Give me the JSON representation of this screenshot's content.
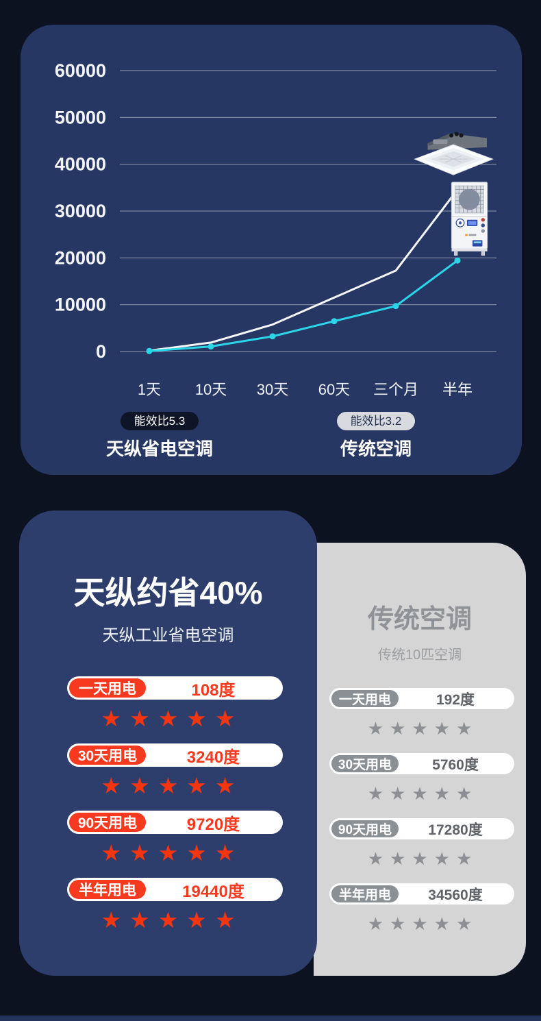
{
  "page": {
    "background": "#0c1220",
    "panel_navy": "#273763",
    "card_navy": "#2d3e6c",
    "card_gray": "#d5d5d5",
    "accent_red": "#f7391f",
    "accent_cyan": "#2bd6e9",
    "bottom_strip_color": "#24335c"
  },
  "chart_data": [
    {
      "type": "line",
      "title": "",
      "categories": [
        "1天",
        "10天",
        "30天",
        "60天",
        "三个月",
        "半年"
      ],
      "y_ticks": [
        0,
        10000,
        20000,
        30000,
        40000,
        50000,
        60000
      ],
      "ylim": [
        0,
        60000
      ],
      "grid": true,
      "legend_position": "bottom",
      "series": [
        {
          "name": "传统空调",
          "color": "#f5f7fa",
          "markers": false,
          "values": [
            192,
            1920,
            5760,
            11520,
            17280,
            34560
          ]
        },
        {
          "name": "天纵省电空调",
          "color": "#2bd6e9",
          "markers": true,
          "values": [
            108,
            1080,
            3240,
            6480,
            9720,
            19440
          ]
        }
      ],
      "legend": {
        "left": {
          "badge": "能效比5.3",
          "label": "天纵省电空调"
        },
        "right": {
          "badge": "能效比3.2",
          "label": "传统空调"
        }
      },
      "images": [
        {
          "icon": "ceiling-cassette-ac",
          "near": "传统空调线末端"
        },
        {
          "icon": "floor-standing-ac",
          "near": "天纵省电空调线末端"
        }
      ]
    },
    {
      "type": "table",
      "title": "天纵约省40%",
      "subtitle": "天纵工业省电空调",
      "star_color": "#f53410",
      "rows": [
        {
          "label": "一天用电",
          "value": "108度",
          "stars": 5
        },
        {
          "label": "30天用电",
          "value": "3240度",
          "stars": 5
        },
        {
          "label": "90天用电",
          "value": "9720度",
          "stars": 5
        },
        {
          "label": "半年用电",
          "value": "19440度",
          "stars": 5
        }
      ]
    },
    {
      "type": "table",
      "title": "传统空调",
      "subtitle": "传统10匹空调",
      "star_color": "#8c9094",
      "rows": [
        {
          "label": "一天用电",
          "value": "192度",
          "stars": 5
        },
        {
          "label": "30天用电",
          "value": "5760度",
          "stars": 5
        },
        {
          "label": "90天用电",
          "value": "17280度",
          "stars": 5
        },
        {
          "label": "半年用电",
          "value": "34560度",
          "stars": 5
        }
      ]
    }
  ]
}
